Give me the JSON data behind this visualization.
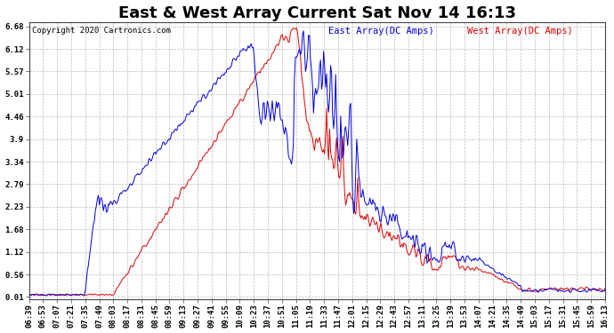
{
  "title": "East & West Array Current Sat Nov 14 16:13",
  "copyright": "Copyright 2020 Cartronics.com",
  "east_label": "East Array(DC Amps)",
  "west_label": "West Array(DC Amps)",
  "east_color": "#0000dd",
  "west_color": "#dd0000",
  "yticks": [
    0.01,
    0.56,
    1.12,
    1.68,
    2.23,
    2.79,
    3.34,
    3.9,
    4.46,
    5.01,
    5.57,
    6.12,
    6.68
  ],
  "ymin": -0.05,
  "ymax": 6.78,
  "bg_color": "#ffffff",
  "grid_color": "#aaaaaa",
  "title_fontsize": 13,
  "legend_fontsize": 7.5,
  "copyright_fontsize": 6.5,
  "tick_fontsize": 6.5,
  "xtick_labels": [
    "06:39",
    "06:53",
    "07:07",
    "07:21",
    "07:35",
    "07:49",
    "08:03",
    "08:17",
    "08:31",
    "08:45",
    "08:59",
    "09:13",
    "09:27",
    "09:41",
    "09:55",
    "10:09",
    "10:23",
    "10:37",
    "10:51",
    "11:05",
    "11:19",
    "11:33",
    "11:47",
    "12:01",
    "12:15",
    "12:29",
    "12:43",
    "12:57",
    "13:11",
    "13:25",
    "13:39",
    "13:53",
    "14:07",
    "14:21",
    "14:35",
    "14:49",
    "15:03",
    "15:17",
    "15:31",
    "15:45",
    "15:59",
    "16:13"
  ]
}
